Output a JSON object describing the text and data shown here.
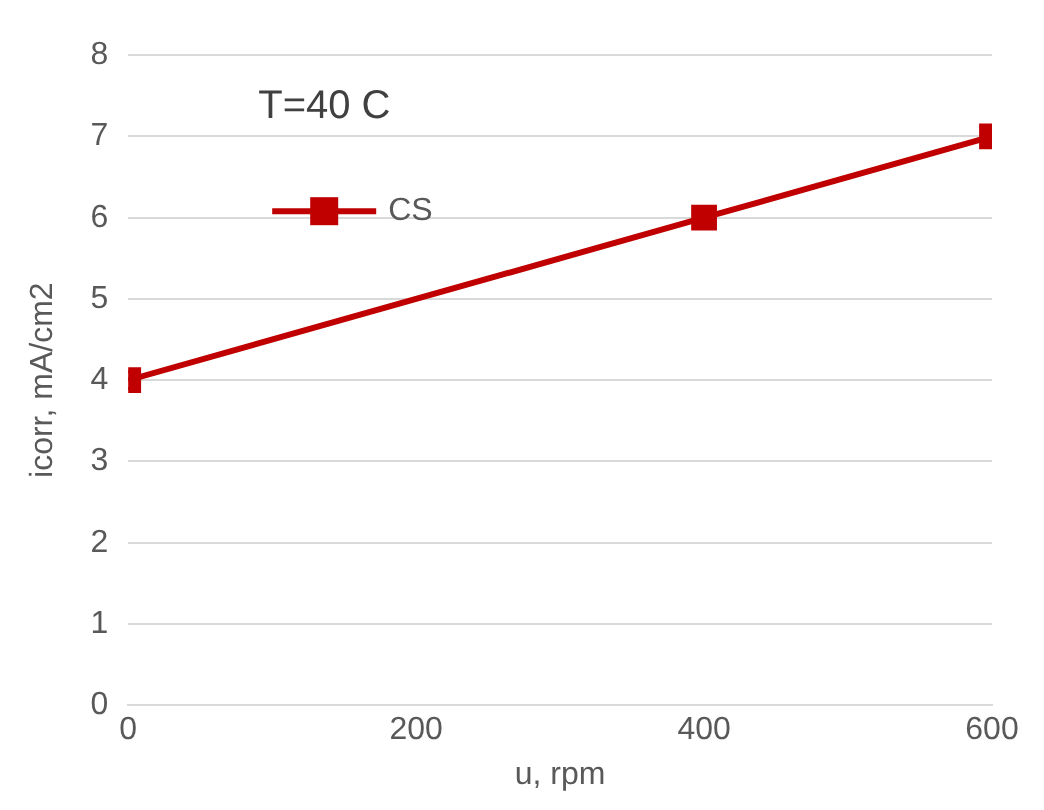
{
  "chart_data": {
    "type": "line",
    "title": "T=40 C",
    "xlabel": "u, rpm",
    "ylabel": "icorr, mA/cm2",
    "x": [
      0,
      400,
      600
    ],
    "series": [
      {
        "name": "CS",
        "color": "#c00000",
        "values": [
          4,
          6,
          7
        ]
      }
    ],
    "xlim": [
      0,
      600
    ],
    "xticks": [
      0,
      200,
      400,
      600
    ],
    "ylim": [
      0,
      8
    ],
    "yticks": [
      0,
      1,
      2,
      3,
      4,
      5,
      6,
      7,
      8
    ],
    "grid": "y",
    "legend": "top left",
    "marker": "square",
    "line_style": "solid"
  }
}
